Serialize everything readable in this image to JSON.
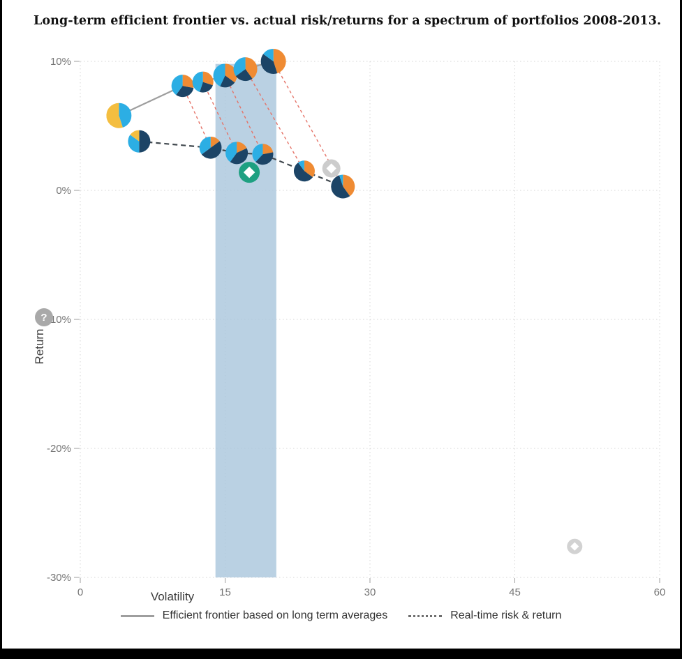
{
  "help_icon_label": "?",
  "chart_data": {
    "type": "scatter",
    "title": "Long-term efficient frontier vs. actual risk/returns for a spectrum of portfolios 2008-2013.",
    "xlabel": "Volatility",
    "ylabel": "Return",
    "xlim": [
      0,
      60
    ],
    "ylim": [
      -30,
      10
    ],
    "grid": true,
    "legend_position": "bottom",
    "x_ticks": [
      {
        "value": 0,
        "label": "0"
      },
      {
        "value": 15,
        "label": "15"
      },
      {
        "value": 30,
        "label": "30"
      },
      {
        "value": 45,
        "label": "45"
      },
      {
        "value": 60,
        "label": "60"
      }
    ],
    "y_ticks": [
      {
        "value": 10,
        "label": "10%"
      },
      {
        "value": 0,
        "label": "0%"
      },
      {
        "value": -10,
        "label": "-10%"
      },
      {
        "value": -20,
        "label": "-20%"
      },
      {
        "value": -30,
        "label": "-30%"
      }
    ],
    "highlight_band": {
      "x_start": 14.0,
      "x_end": 20.3,
      "y_start": -30,
      "y_end": 9.8,
      "color": "#a9c6dc",
      "opacity": 0.8
    },
    "palette": {
      "navy": "#1c4466",
      "cyan": "#2caee4",
      "orange": "#ef8b33",
      "yellow": "#f4be40"
    },
    "series": [
      {
        "name": "Efficient frontier based on long term averages",
        "line_style": "solid",
        "line_color": "#9e9e9e",
        "points": [
          {
            "x": 4.0,
            "y": 5.8,
            "r": 18,
            "slices": [
              [
                "#2caee4",
                0.45
              ],
              [
                "#f4be40",
                0.55
              ]
            ]
          },
          {
            "x": 10.6,
            "y": 8.1,
            "r": 16,
            "slices": [
              [
                "#ef8b33",
                0.28
              ],
              [
                "#1c4466",
                0.32
              ],
              [
                "#2caee4",
                0.4
              ]
            ]
          },
          {
            "x": 12.7,
            "y": 8.4,
            "r": 15,
            "slices": [
              [
                "#ef8b33",
                0.3
              ],
              [
                "#1c4466",
                0.25
              ],
              [
                "#2caee4",
                0.45
              ]
            ]
          },
          {
            "x": 15.0,
            "y": 8.9,
            "r": 17,
            "slices": [
              [
                "#ef8b33",
                0.35
              ],
              [
                "#1c4466",
                0.22
              ],
              [
                "#2caee4",
                0.43
              ]
            ]
          },
          {
            "x": 17.1,
            "y": 9.4,
            "r": 17,
            "slices": [
              [
                "#ef8b33",
                0.4
              ],
              [
                "#1c4466",
                0.25
              ],
              [
                "#2caee4",
                0.35
              ]
            ]
          },
          {
            "x": 20.0,
            "y": 10.0,
            "r": 18,
            "slices": [
              [
                "#ef8b33",
                0.45
              ],
              [
                "#1c4466",
                0.4
              ],
              [
                "#2caee4",
                0.15
              ]
            ]
          }
        ]
      },
      {
        "name": "Real-time risk & return",
        "line_style": "dashed",
        "line_color": "#40484e",
        "points": [
          {
            "x": 6.1,
            "y": 3.8,
            "r": 16,
            "slices": [
              [
                "#1c4466",
                0.5
              ],
              [
                "#2caee4",
                0.35
              ],
              [
                "#f4be40",
                0.15
              ]
            ]
          },
          {
            "x": 13.5,
            "y": 3.3,
            "r": 16,
            "slices": [
              [
                "#ef8b33",
                0.15
              ],
              [
                "#1c4466",
                0.5
              ],
              [
                "#2caee4",
                0.35
              ]
            ]
          },
          {
            "x": 16.2,
            "y": 2.9,
            "r": 16,
            "slices": [
              [
                "#ef8b33",
                0.18
              ],
              [
                "#1c4466",
                0.42
              ],
              [
                "#2caee4",
                0.4
              ]
            ]
          },
          {
            "x": 18.9,
            "y": 2.8,
            "r": 15,
            "slices": [
              [
                "#ef8b33",
                0.22
              ],
              [
                "#1c4466",
                0.4
              ],
              [
                "#2caee4",
                0.38
              ]
            ]
          },
          {
            "x": 23.2,
            "y": 1.5,
            "r": 15,
            "slices": [
              [
                "#ef8b33",
                0.35
              ],
              [
                "#1c4466",
                0.55
              ],
              [
                "#2caee4",
                0.1
              ]
            ]
          },
          {
            "x": 27.2,
            "y": 0.3,
            "r": 17,
            "slices": [
              [
                "#ef8b33",
                0.4
              ],
              [
                "#1c4466",
                0.55
              ],
              [
                "#2caee4",
                0.05
              ]
            ]
          }
        ]
      }
    ],
    "pair_connectors": {
      "color": "#e57368",
      "pairs": [
        [
          1,
          1
        ],
        [
          2,
          2
        ],
        [
          3,
          3
        ],
        [
          4,
          4
        ],
        [
          5,
          5
        ]
      ]
    },
    "markers": [
      {
        "x": 17.5,
        "y": 1.4,
        "r": 15,
        "fill": "#1ea081",
        "glyph": "diamond",
        "glyph_color": "#ffffff"
      },
      {
        "x": 26.0,
        "y": 1.7,
        "r": 13,
        "fill": "#cccccc",
        "glyph": "diamond",
        "glyph_color": "#ffffff"
      },
      {
        "x": 51.2,
        "y": -27.6,
        "r": 11,
        "fill": "#d2d2d2",
        "glyph": "diamond",
        "glyph_color": "#ffffff"
      }
    ]
  }
}
